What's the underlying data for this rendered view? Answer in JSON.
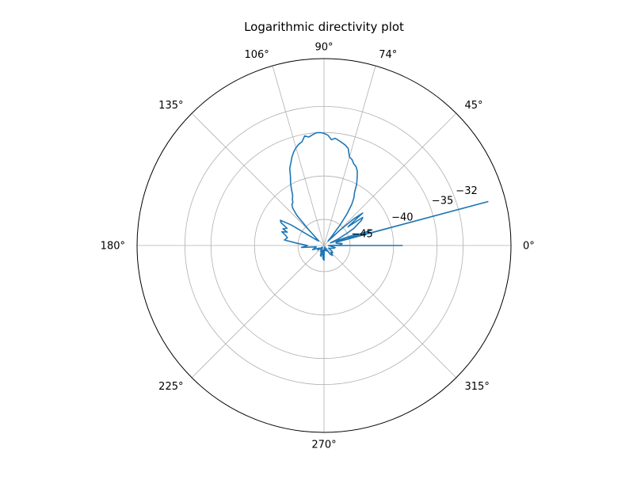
{
  "chart_data": {
    "type": "line",
    "projection": "polar",
    "title": "Logarithmic directivity plot",
    "grid": true,
    "legend": "none",
    "theta_unit": "degrees",
    "theta_range": [
      0,
      360
    ],
    "r_range": [
      -48,
      -26.5
    ],
    "theta_ticks": [
      {
        "value": 0,
        "label": "0°"
      },
      {
        "value": 45,
        "label": "45°"
      },
      {
        "value": 74,
        "label": "74°"
      },
      {
        "value": 90,
        "label": "90°"
      },
      {
        "value": 106,
        "label": "106°"
      },
      {
        "value": 135,
        "label": "135°"
      },
      {
        "value": 180,
        "label": "180°"
      },
      {
        "value": 225,
        "label": "225°"
      },
      {
        "value": 270,
        "label": "270°"
      },
      {
        "value": 315,
        "label": "315°"
      }
    ],
    "r_ticks": [
      {
        "value": -45,
        "label": "−45"
      },
      {
        "value": -40,
        "label": "−40"
      },
      {
        "value": -35,
        "label": "−35"
      },
      {
        "value": -32,
        "label": "−32"
      }
    ],
    "series": [
      {
        "color": "#1f77b4",
        "theta": [
          0,
          0,
          0,
          1,
          2,
          4,
          6,
          8,
          10,
          12,
          15,
          15,
          16,
          17,
          18,
          18,
          18,
          19,
          20,
          22,
          25,
          28,
          30,
          32,
          34,
          36,
          38,
          40,
          42,
          44,
          46,
          48,
          50,
          52,
          54,
          56,
          58,
          60,
          62,
          64,
          66,
          68,
          70,
          72,
          74,
          76,
          78,
          80,
          82,
          84,
          86,
          88,
          90,
          92,
          94,
          96,
          98,
          100,
          102,
          104,
          106,
          108,
          110,
          112,
          114,
          116,
          118,
          120,
          122,
          124,
          126,
          128,
          130,
          132,
          134,
          136,
          140,
          144,
          148,
          150,
          152,
          155,
          158,
          160,
          162,
          165,
          168,
          172,
          175,
          180,
          185,
          190,
          195,
          200,
          205,
          210,
          215,
          220,
          225,
          230,
          235,
          240,
          245,
          250,
          255,
          260,
          265,
          270,
          275,
          280,
          285,
          290,
          295,
          300,
          305,
          310,
          315,
          320,
          325,
          330,
          335,
          340,
          345,
          350,
          355,
          360
        ],
        "r": [
          -47.5,
          -39,
          -47.5,
          -46.6,
          -46.2,
          -46,
          -45.9,
          -46.2,
          -46.5,
          -46.6,
          -46.5,
          -28.5,
          -46.5,
          -43,
          -42.2,
          -43.5,
          -45,
          -44.2,
          -45.2,
          -47.2,
          -46.2,
          -45,
          -44,
          -43.5,
          -42.8,
          -42.5,
          -44.5,
          -42.2,
          -43.5,
          -45.5,
          -47,
          -47.3,
          -46.5,
          -45,
          -43.5,
          -42.3,
          -41.5,
          -41,
          -40,
          -39.3,
          -38.6,
          -38.2,
          -38,
          -37.6,
          -37.4,
          -36.5,
          -36.2,
          -36,
          -35.8,
          -35.6,
          -35.8,
          -35.3,
          -35.1,
          -35,
          -35,
          -35.2,
          -35.4,
          -35.2,
          -35.8,
          -36,
          -36.3,
          -36.7,
          -37.2,
          -37.8,
          -38.3,
          -39.2,
          -39.8,
          -40.5,
          -41.2,
          -41.5,
          -41.9,
          -42,
          -42.4,
          -43.3,
          -45.4,
          -46.6,
          -47.2,
          -46.8,
          -43.5,
          -42.2,
          -42.4,
          -43.3,
          -42.9,
          -43.5,
          -42.9,
          -43.4,
          -43.7,
          -43.4,
          -44.8,
          -46.1,
          -45.4,
          -47.1,
          -46.9,
          -46.6,
          -47.2,
          -47.4,
          -47.1,
          -47.7,
          -47.5,
          -47.4,
          -47.7,
          -47.2,
          -47.4,
          -46.8,
          -46.7,
          -47.5,
          -46.5,
          -46.3,
          -47.7,
          -47.6,
          -47.4,
          -47.8,
          -47.3,
          -47.6,
          -46.8,
          -46.5,
          -46.9,
          -46.7,
          -46.9,
          -47.4,
          -47.2,
          -47.1,
          -46.8,
          -46.7,
          -47.3,
          -47.5
        ]
      }
    ]
  }
}
